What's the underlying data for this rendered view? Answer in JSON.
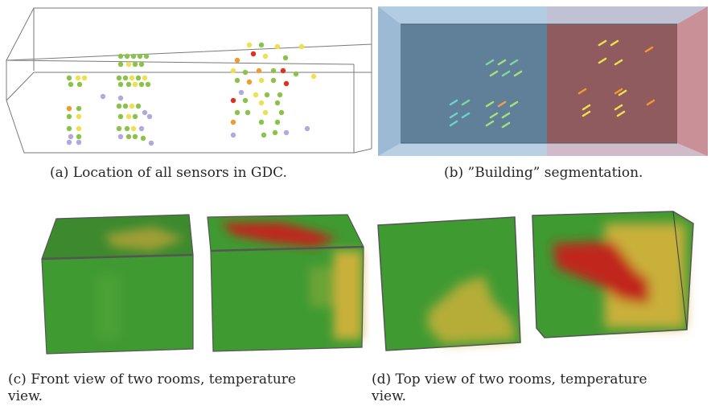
{
  "figure": {
    "panels": [
      {
        "id": "a",
        "caption": "(a)  Location of all sensors in GDC."
      },
      {
        "id": "b",
        "caption": "(b)  ”Building” segmentation."
      },
      {
        "id": "c",
        "caption_line1": "(c)  Front view of two rooms, temperature",
        "caption_line2": "view."
      },
      {
        "id": "d",
        "caption_line1": "(d)  Top view of two rooms, temperature",
        "caption_line2": "view."
      }
    ],
    "colors": {
      "sensor_green": "#8ac24a",
      "sensor_yellow": "#f0e050",
      "sensor_orange": "#f29a2e",
      "sensor_red": "#e0301e",
      "sensor_lavender": "#b0a8e0",
      "segment_blue": "#a9c6e0",
      "segment_red": "#d6a0a8",
      "heat_green": "#3f9a32",
      "heat_yellow": "#c9b03a",
      "heat_red": "#c0281a"
    }
  }
}
